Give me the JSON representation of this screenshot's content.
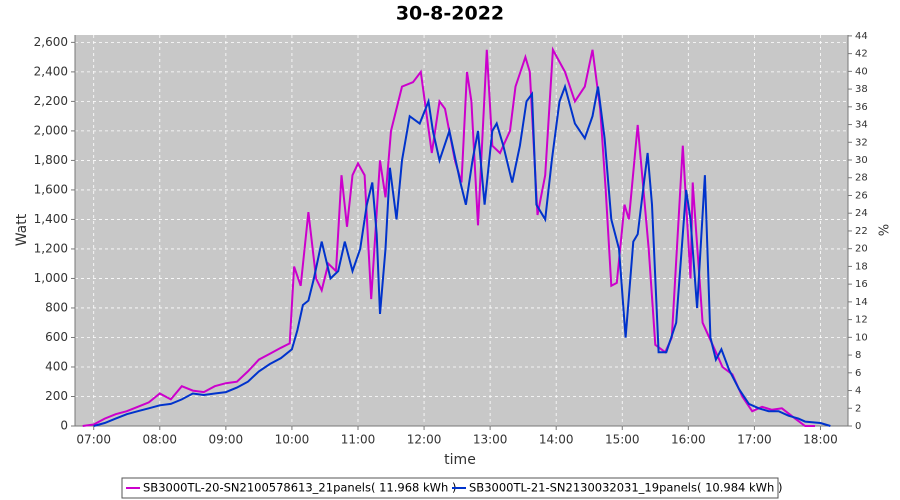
{
  "chart_data": {
    "type": "line",
    "title": "30-8-2022",
    "x_label": "time",
    "y_label": "Watt",
    "y2_label": "%",
    "xlim": [
      "06:43",
      "18:25"
    ],
    "xticks": [
      "07:00",
      "08:00",
      "09:00",
      "10:00",
      "11:00",
      "12:00",
      "13:00",
      "14:00",
      "15:00",
      "16:00",
      "17:00",
      "18:00"
    ],
    "ylim": [
      0,
      2650
    ],
    "yticks": [
      0,
      200,
      400,
      600,
      800,
      {
        "value": 1000,
        "label": "1,000"
      },
      {
        "value": 1200,
        "label": "1,200"
      },
      {
        "value": 1400,
        "label": "1,400"
      },
      {
        "value": 1600,
        "label": "1,600"
      },
      {
        "value": 1800,
        "label": "1,800"
      },
      {
        "value": 2000,
        "label": "2,000"
      },
      {
        "value": 2200,
        "label": "2,200"
      },
      {
        "value": 2400,
        "label": "2,400"
      },
      {
        "value": 2600,
        "label": "2,600"
      }
    ],
    "y2lim": [
      0,
      44.1
    ],
    "y2ticks": [
      0,
      2,
      4,
      6,
      8,
      10,
      12,
      14,
      16,
      18,
      20,
      22,
      24,
      26,
      28,
      30,
      32,
      34,
      36,
      38,
      40,
      42,
      44
    ],
    "grid": true,
    "series": [
      {
        "name": "SB3000TL-20-SN2100578613_21panels( 11.968 kWh )",
        "color": "#cc00cc",
        "x": [
          "06:50",
          "07:00",
          "07:10",
          "07:20",
          "07:30",
          "07:40",
          "07:50",
          "08:00",
          "08:10",
          "08:20",
          "08:30",
          "08:40",
          "08:50",
          "09:00",
          "09:10",
          "09:20",
          "09:30",
          "09:40",
          "09:50",
          "09:58",
          "10:02",
          "10:08",
          "10:15",
          "10:22",
          "10:27",
          "10:33",
          "10:40",
          "10:45",
          "10:50",
          "10:55",
          "11:00",
          "11:06",
          "11:12",
          "11:20",
          "11:25",
          "11:30",
          "11:40",
          "11:50",
          "11:57",
          "12:07",
          "12:14",
          "12:19",
          "12:28",
          "12:34",
          "12:39",
          "12:43",
          "12:49",
          "12:57",
          "13:02",
          "13:09",
          "13:18",
          "13:23",
          "13:32",
          "13:36",
          "13:43",
          "13:50",
          "13:57",
          "14:08",
          "14:17",
          "14:26",
          "14:33",
          "14:40",
          "14:45",
          "14:50",
          "14:55",
          "15:02",
          "15:06",
          "15:14",
          "15:24",
          "15:30",
          "15:39",
          "15:45",
          "15:55",
          "16:02",
          "16:04",
          "16:13",
          "16:22",
          "16:31",
          "16:40",
          "16:49",
          "16:58",
          "17:07",
          "17:16",
          "17:25",
          "17:37",
          "17:46",
          "17:55"
        ],
        "values": [
          0,
          10,
          50,
          80,
          100,
          130,
          160,
          220,
          180,
          270,
          240,
          230,
          270,
          290,
          300,
          370,
          450,
          490,
          530,
          560,
          1080,
          950,
          1450,
          1000,
          920,
          1100,
          1050,
          1700,
          1350,
          1700,
          1780,
          1700,
          860,
          1800,
          1550,
          2000,
          2300,
          2330,
          2400,
          1850,
          2200,
          2150,
          1800,
          1650,
          2400,
          2200,
          1360,
          2550,
          1900,
          1850,
          2000,
          2300,
          2500,
          2400,
          1430,
          1700,
          2550,
          2400,
          2200,
          2300,
          2550,
          2150,
          1600,
          950,
          970,
          1500,
          1400,
          2040,
          1200,
          550,
          500,
          600,
          1900,
          1000,
          1650,
          700,
          550,
          400,
          350,
          200,
          100,
          130,
          110,
          120,
          50,
          0,
          0
        ]
      },
      {
        "name": "SB3000TL-21-SN2130032031_19panels( 10.984 kWh )",
        "color": "#0033cc",
        "x": [
          "07:00",
          "07:10",
          "07:20",
          "07:30",
          "07:40",
          "07:50",
          "08:00",
          "08:10",
          "08:20",
          "08:30",
          "08:40",
          "08:50",
          "09:00",
          "09:10",
          "09:20",
          "09:30",
          "09:40",
          "09:50",
          "10:00",
          "10:05",
          "10:10",
          "10:15",
          "10:20",
          "10:27",
          "10:35",
          "10:42",
          "10:48",
          "10:55",
          "11:02",
          "11:08",
          "11:13",
          "11:17",
          "11:20",
          "11:25",
          "11:29",
          "11:35",
          "11:40",
          "11:47",
          "11:56",
          "12:04",
          "12:08",
          "12:14",
          "12:23",
          "12:33",
          "12:38",
          "12:44",
          "12:49",
          "12:55",
          "13:02",
          "13:06",
          "13:12",
          "13:20",
          "13:27",
          "13:33",
          "13:38",
          "13:42",
          "13:50",
          "13:56",
          "14:03",
          "14:08",
          "14:17",
          "14:26",
          "14:33",
          "14:38",
          "14:44",
          "14:50",
          "14:57",
          "15:03",
          "15:10",
          "15:14",
          "15:23",
          "15:27",
          "15:33",
          "15:40",
          "15:49",
          "15:58",
          "16:02",
          "16:08",
          "16:15",
          "16:20",
          "16:25",
          "16:30",
          "16:37",
          "16:46",
          "16:55",
          "17:04",
          "17:13",
          "17:22",
          "17:31",
          "17:40",
          "17:46",
          "18:00",
          "18:09"
        ],
        "values": [
          0,
          20,
          50,
          80,
          100,
          120,
          140,
          150,
          180,
          220,
          210,
          220,
          230,
          260,
          300,
          370,
          420,
          460,
          520,
          650,
          820,
          850,
          1000,
          1250,
          1000,
          1050,
          1250,
          1050,
          1200,
          1500,
          1650,
          1300,
          760,
          1200,
          1750,
          1400,
          1800,
          2100,
          2050,
          2200,
          2000,
          1800,
          2000,
          1650,
          1500,
          1800,
          2000,
          1500,
          2000,
          2050,
          1900,
          1650,
          1900,
          2200,
          2250,
          1500,
          1400,
          1800,
          2200,
          2300,
          2050,
          1950,
          2100,
          2300,
          1950,
          1400,
          1200,
          600,
          1250,
          1300,
          1850,
          1500,
          500,
          500,
          700,
          1600,
          1400,
          800,
          1700,
          600,
          450,
          520,
          380,
          250,
          150,
          120,
          100,
          100,
          70,
          50,
          30,
          20,
          0
        ]
      }
    ]
  }
}
